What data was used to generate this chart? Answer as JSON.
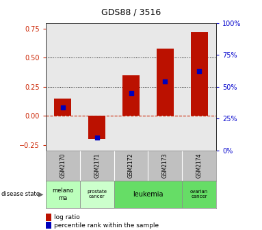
{
  "title": "GDS88 / 3516",
  "samples": [
    "GSM2170",
    "GSM2171",
    "GSM2172",
    "GSM2173",
    "GSM2174"
  ],
  "log_ratio": [
    0.15,
    -0.2,
    0.35,
    0.58,
    0.72
  ],
  "percentile_rank": [
    34,
    10,
    45,
    54,
    62
  ],
  "disease_groups": [
    {
      "label": "melano\nma",
      "color": "#bbffbb",
      "span": [
        0,
        1
      ],
      "fontsize": 6
    },
    {
      "label": "prostate\ncancer",
      "color": "#ccffcc",
      "span": [
        1,
        2
      ],
      "fontsize": 5
    },
    {
      "label": "leukemia",
      "color": "#66dd66",
      "span": [
        2,
        4
      ],
      "fontsize": 7
    },
    {
      "label": "ovarian\ncancer",
      "color": "#66dd66",
      "span": [
        4,
        5
      ],
      "fontsize": 5
    }
  ],
  "bar_color": "#bb1100",
  "dot_color": "#0000bb",
  "ylim_left": [
    -0.3,
    0.8
  ],
  "ylim_right": [
    0,
    100
  ],
  "yticks_left": [
    -0.25,
    0.0,
    0.25,
    0.5,
    0.75
  ],
  "yticks_right": [
    0,
    25,
    50,
    75,
    100
  ],
  "hlines": [
    0.5,
    0.25
  ],
  "bar_width": 0.5,
  "plot_bg": "#e8e8e8",
  "sample_box_bg": "#c0c0c0"
}
